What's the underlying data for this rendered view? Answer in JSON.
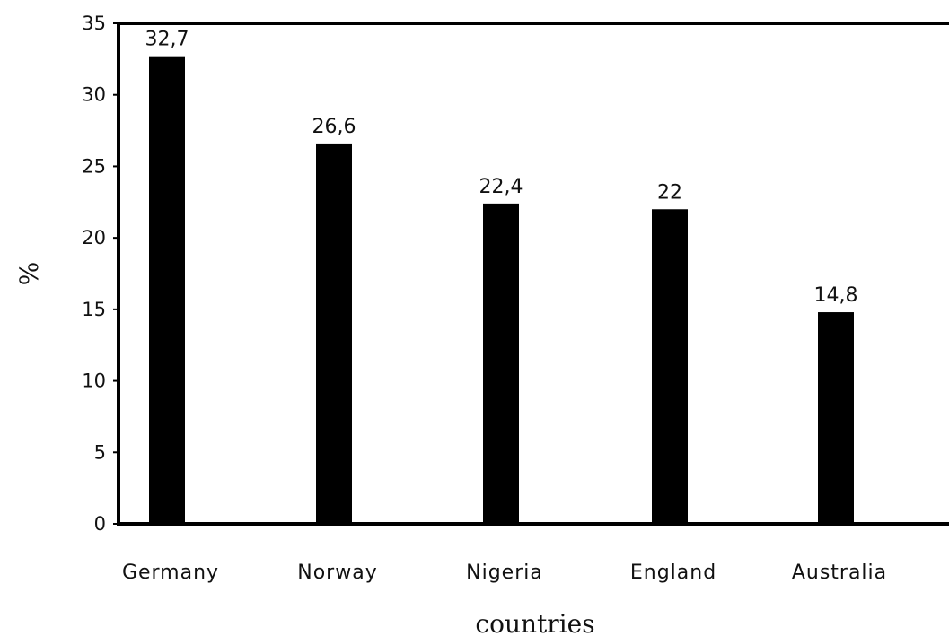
{
  "chart_data": {
    "type": "bar",
    "title": "",
    "xlabel": "countries",
    "ylabel": "%",
    "categories": [
      "Germany",
      "Norway",
      "Nigeria",
      "England",
      "Australia"
    ],
    "values": [
      32.7,
      26.6,
      22.4,
      22,
      14.8
    ],
    "data_labels": [
      "32,7",
      "26,6",
      "22,4",
      "22",
      "14,8"
    ],
    "ylim": [
      0,
      35
    ],
    "yticks": [
      0,
      5,
      10,
      15,
      20,
      25,
      30,
      35
    ],
    "ytick_labels": [
      "0",
      "5",
      "10",
      "15",
      "20",
      "25",
      "30",
      "35"
    ],
    "grid": false,
    "legend": "none",
    "bar_color": "#000000"
  }
}
